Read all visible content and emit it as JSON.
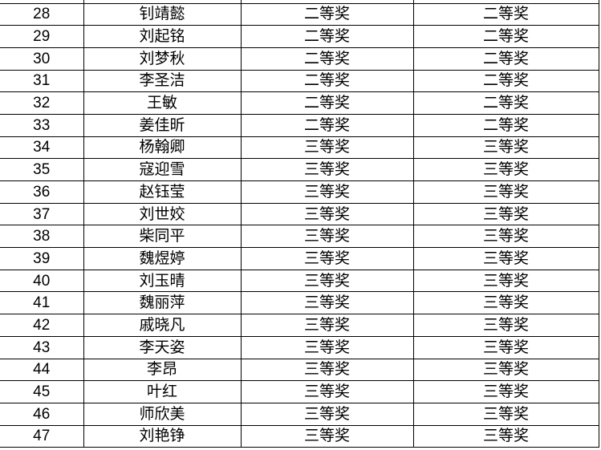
{
  "colors": {
    "background": "#ffffff",
    "grid_line": "#000000",
    "text": "#000000"
  },
  "table": {
    "description": "award list table, cropped; columns: row number, name, award level, award level",
    "rows": [
      {
        "num": "28",
        "name": "钊靖懿",
        "award1": "二等奖",
        "award2": "二等奖"
      },
      {
        "num": "29",
        "name": "刘起铭",
        "award1": "二等奖",
        "award2": "二等奖"
      },
      {
        "num": "30",
        "name": "刘梦秋",
        "award1": "二等奖",
        "award2": "二等奖"
      },
      {
        "num": "31",
        "name": "李圣洁",
        "award1": "二等奖",
        "award2": "二等奖"
      },
      {
        "num": "32",
        "name": "王敏",
        "award1": "二等奖",
        "award2": "二等奖"
      },
      {
        "num": "33",
        "name": "姜佳昕",
        "award1": "二等奖",
        "award2": "二等奖"
      },
      {
        "num": "34",
        "name": "杨翰卿",
        "award1": "三等奖",
        "award2": "三等奖"
      },
      {
        "num": "35",
        "name": "寇迎雪",
        "award1": "三等奖",
        "award2": "三等奖"
      },
      {
        "num": "36",
        "name": "赵钰莹",
        "award1": "三等奖",
        "award2": "三等奖"
      },
      {
        "num": "37",
        "name": "刘世姣",
        "award1": "三等奖",
        "award2": "三等奖"
      },
      {
        "num": "38",
        "name": "柴同平",
        "award1": "三等奖",
        "award2": "三等奖"
      },
      {
        "num": "39",
        "name": "魏煜婷",
        "award1": "三等奖",
        "award2": "三等奖"
      },
      {
        "num": "40",
        "name": "刘玉晴",
        "award1": "三等奖",
        "award2": "三等奖"
      },
      {
        "num": "41",
        "name": "魏丽萍",
        "award1": "三等奖",
        "award2": "三等奖"
      },
      {
        "num": "42",
        "name": "戚晓凡",
        "award1": "三等奖",
        "award2": "三等奖"
      },
      {
        "num": "43",
        "name": "李天姿",
        "award1": "三等奖",
        "award2": "三等奖"
      },
      {
        "num": "44",
        "name": "李昂",
        "award1": "三等奖",
        "award2": "三等奖"
      },
      {
        "num": "45",
        "name": "叶红",
        "award1": "三等奖",
        "award2": "三等奖"
      },
      {
        "num": "46",
        "name": "师欣美",
        "award1": "三等奖",
        "award2": "三等奖"
      },
      {
        "num": "47",
        "name": "刘艳铮",
        "award1": "三等奖",
        "award2": "三等奖"
      }
    ]
  }
}
